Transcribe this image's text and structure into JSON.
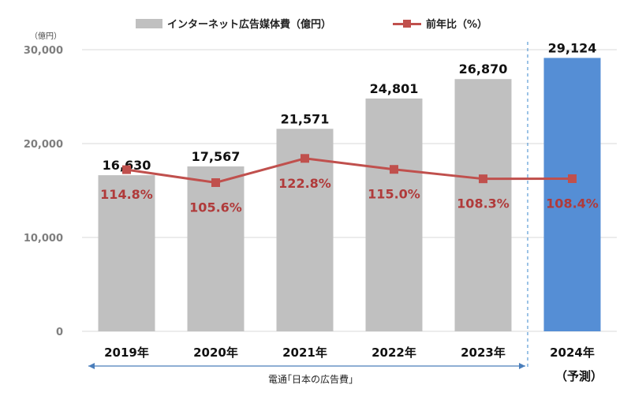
{
  "legend": {
    "bar_label": "インターネット広告媒体費（億円）",
    "line_label": "前年比（%）"
  },
  "y_unit": "（億円）",
  "source_text": "電通｢日本の広告費｣",
  "forecast_sublabel": "（予測）",
  "colors": {
    "bar": "#c0c0c0",
    "forecast_bar": "#558ed5",
    "line": "#c0504d",
    "arrow": "#4a7ebb"
  },
  "chart_data": {
    "type": "bar",
    "categories": [
      "2019年",
      "2020年",
      "2021年",
      "2022年",
      "2023年",
      "2024年"
    ],
    "series": [
      {
        "name": "インターネット広告媒体費（億円）",
        "values": [
          16630,
          17567,
          21571,
          24801,
          26870,
          29124
        ],
        "labels": [
          "16,630",
          "17,567",
          "21,571",
          "24,801",
          "26,870",
          "29,124"
        ]
      },
      {
        "name": "前年比（%）",
        "type": "line",
        "values": [
          114.8,
          105.6,
          122.8,
          115.0,
          108.3,
          108.4
        ],
        "labels": [
          "114.8%",
          "105.6%",
          "122.8%",
          "115.0%",
          "108.3%",
          "108.4%"
        ]
      }
    ],
    "forecast_index": 5,
    "ylim": [
      0,
      30000
    ],
    "yticks": [
      0,
      10000,
      20000,
      30000
    ],
    "ytick_labels": [
      "0",
      "10,000",
      "20,000",
      "30,000"
    ],
    "secondary_ylim": [
      0,
      200
    ],
    "grid": true,
    "legend": "top"
  }
}
